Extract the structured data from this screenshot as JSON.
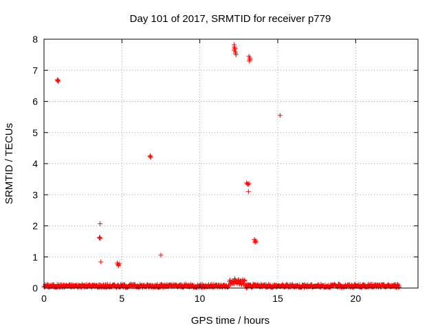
{
  "chart_data": {
    "type": "scatter",
    "title": "Day 101 of 2017, SRMTID for receiver p779",
    "xlabel": "GPS time / hours",
    "ylabel": "SRMTID / TECUs",
    "xlim": [
      0,
      24
    ],
    "ylim": [
      0,
      8
    ],
    "xticks": [
      0,
      5,
      10,
      15,
      20
    ],
    "yticks": [
      0,
      1,
      2,
      3,
      4,
      5,
      6,
      7,
      8
    ],
    "grid": true,
    "marker": "+",
    "color": "#ff0000",
    "baseline": {
      "description": "dense band of near-zero values",
      "x_range": [
        0,
        22.8
      ],
      "y_range": [
        0.02,
        0.12
      ],
      "elevated": {
        "x_range": [
          11.9,
          12.9
        ],
        "y_range": [
          0.1,
          0.3
        ]
      }
    },
    "points": [
      {
        "x": 0.85,
        "y": 6.68
      },
      {
        "x": 0.9,
        "y": 6.65
      },
      {
        "x": 0.88,
        "y": 6.7
      },
      {
        "x": 0.92,
        "y": 6.66
      },
      {
        "x": 3.6,
        "y": 2.07
      },
      {
        "x": 3.55,
        "y": 1.62
      },
      {
        "x": 3.6,
        "y": 1.6
      },
      {
        "x": 3.58,
        "y": 1.63
      },
      {
        "x": 3.65,
        "y": 0.84
      },
      {
        "x": 4.7,
        "y": 0.8
      },
      {
        "x": 4.75,
        "y": 0.76
      },
      {
        "x": 4.78,
        "y": 0.72
      },
      {
        "x": 4.85,
        "y": 0.78
      },
      {
        "x": 6.8,
        "y": 4.23
      },
      {
        "x": 6.85,
        "y": 4.2
      },
      {
        "x": 6.82,
        "y": 4.25
      },
      {
        "x": 7.5,
        "y": 1.06
      },
      {
        "x": 12.2,
        "y": 7.82
      },
      {
        "x": 12.22,
        "y": 7.75
      },
      {
        "x": 12.25,
        "y": 7.7
      },
      {
        "x": 12.2,
        "y": 7.65
      },
      {
        "x": 12.28,
        "y": 7.6
      },
      {
        "x": 12.3,
        "y": 7.55
      },
      {
        "x": 12.32,
        "y": 7.5
      },
      {
        "x": 13.15,
        "y": 7.45
      },
      {
        "x": 13.2,
        "y": 7.4
      },
      {
        "x": 13.22,
        "y": 7.35
      },
      {
        "x": 13.18,
        "y": 7.3
      },
      {
        "x": 13.0,
        "y": 3.38
      },
      {
        "x": 13.05,
        "y": 3.35
      },
      {
        "x": 13.1,
        "y": 3.33
      },
      {
        "x": 13.15,
        "y": 3.36
      },
      {
        "x": 13.12,
        "y": 3.1
      },
      {
        "x": 13.5,
        "y": 1.56
      },
      {
        "x": 13.55,
        "y": 1.52
      },
      {
        "x": 13.6,
        "y": 1.5
      },
      {
        "x": 13.55,
        "y": 1.47
      },
      {
        "x": 15.15,
        "y": 5.55
      },
      {
        "x": 13.0,
        "y": 0.0
      }
    ]
  }
}
